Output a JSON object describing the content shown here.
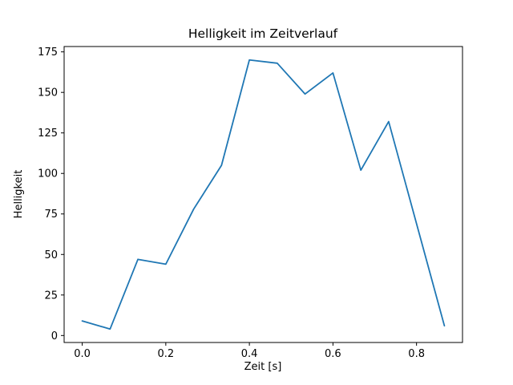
{
  "chart_data": {
    "type": "line",
    "title": "Helligkeit im Zeitverlauf",
    "xlabel": "Zeit [s]",
    "ylabel": "Helligkeit",
    "x": [
      0.0,
      0.0667,
      0.1333,
      0.2,
      0.2667,
      0.3333,
      0.4,
      0.4667,
      0.5333,
      0.6,
      0.6667,
      0.7333,
      0.8,
      0.8667
    ],
    "y": [
      9,
      4,
      47,
      44,
      78,
      105,
      170,
      168,
      149,
      162,
      102,
      132,
      69,
      6
    ],
    "xlim": [
      -0.0433,
      0.91
    ],
    "ylim": [
      -4.3,
      178.3
    ],
    "xticks": [
      0.0,
      0.2,
      0.4,
      0.6,
      0.8
    ],
    "xtick_labels": [
      "0.0",
      "0.2",
      "0.4",
      "0.6",
      "0.8"
    ],
    "yticks": [
      0,
      25,
      50,
      75,
      100,
      125,
      150,
      175
    ],
    "ytick_labels": [
      "0",
      "25",
      "50",
      "75",
      "100",
      "125",
      "150",
      "175"
    ],
    "line_color": "#1f77b4",
    "axis_color": "#000000",
    "background": "#ffffff",
    "grid": false,
    "legend_position": null
  }
}
